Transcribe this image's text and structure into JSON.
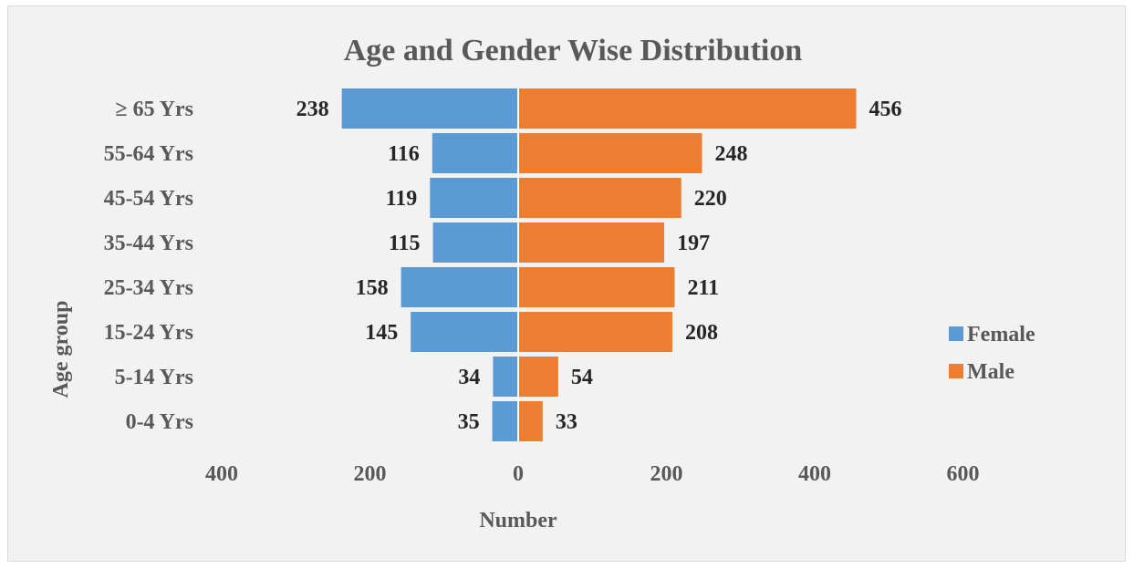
{
  "chart_data": {
    "type": "bar",
    "orientation": "horizontal",
    "title": "Age and Gender Wise Distribution",
    "xlabel": "Number",
    "ylabel": "Age group",
    "categories": [
      "≥ 65 Yrs",
      "55-64 Yrs",
      "45-54 Yrs",
      "35-44 Yrs",
      "25-34 Yrs",
      "15-24 Yrs",
      "5-14 Yrs",
      "0-4 Yrs"
    ],
    "series": [
      {
        "name": "Female",
        "values": [
          238,
          116,
          119,
          115,
          158,
          145,
          34,
          35
        ],
        "color": "#5b9bd5",
        "direction": "left"
      },
      {
        "name": "Male",
        "values": [
          456,
          248,
          220,
          197,
          211,
          208,
          54,
          33
        ],
        "color": "#ed7d31",
        "direction": "right"
      }
    ],
    "xlim": [
      -400,
      600
    ],
    "xticks": [
      {
        "value": -400,
        "label": "400"
      },
      {
        "value": -200,
        "label": "200"
      },
      {
        "value": 0,
        "label": "0"
      },
      {
        "value": 200,
        "label": "200"
      },
      {
        "value": 400,
        "label": "400"
      },
      {
        "value": 600,
        "label": "600"
      }
    ],
    "grid": false,
    "legend_position": "right",
    "background": "#f2f2f2"
  }
}
